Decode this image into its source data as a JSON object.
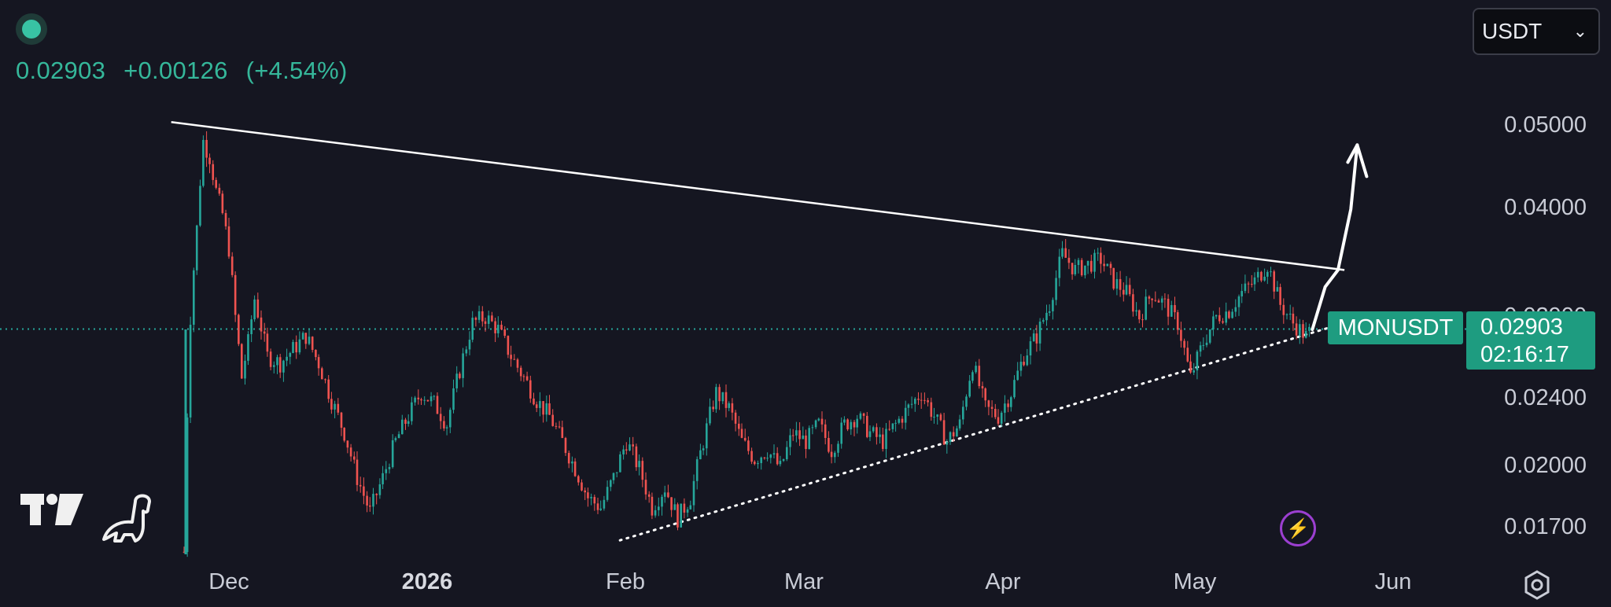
{
  "header": {
    "status_icon": "live-status-dot",
    "price": "0.02903",
    "change": "+0.00126",
    "change_pct": "(+4.54%)"
  },
  "currency_select": {
    "value": "USDT",
    "chevron": "⌄"
  },
  "badges": {
    "ticker": "MONUSDT",
    "last_price": "0.02903",
    "countdown": "02:16:17"
  },
  "icons": {
    "tradingview_logo": "tradingview-logo",
    "dino": "dinosaur-icon",
    "bolt": "⚡",
    "settings": "gear-icon"
  },
  "colors": {
    "background": "#151621",
    "up": "#26a69a",
    "down": "#ef5350",
    "accent": "#1e9c80",
    "trendline": "#ffffff",
    "price_line": "#26a69a"
  },
  "chart_data": {
    "type": "candlestick",
    "symbol": "MONUSDT",
    "y_scale": "log",
    "last_price": 0.02903,
    "x_labels": [
      {
        "label": "Dec",
        "date": "2025-12-01",
        "bold": false
      },
      {
        "label": "2026",
        "date": "2026-01-01",
        "bold": true
      },
      {
        "label": "Feb",
        "date": "2026-02-01",
        "bold": false
      },
      {
        "label": "Mar",
        "date": "2026-03-01",
        "bold": false
      },
      {
        "label": "Apr",
        "date": "2026-04-01",
        "bold": false
      },
      {
        "label": "May",
        "date": "2026-05-01",
        "bold": false
      },
      {
        "label": "Jun",
        "date": "2026-06-01",
        "bold": false
      }
    ],
    "y_ticks": [
      "0.05000",
      "0.04000",
      "0.02900",
      "0.02400",
      "0.02000",
      "0.01700"
    ],
    "price_series": [
      [
        "2025-11-24",
        0.016
      ],
      [
        "2025-11-25",
        0.03
      ],
      [
        "2025-11-26",
        0.038
      ],
      [
        "2025-11-27",
        0.048
      ],
      [
        "2025-11-28",
        0.046
      ],
      [
        "2025-11-29",
        0.042
      ],
      [
        "2025-11-30",
        0.0395
      ],
      [
        "2025-12-01",
        0.036
      ],
      [
        "2025-12-02",
        0.03
      ],
      [
        "2025-12-03",
        0.0255
      ],
      [
        "2025-12-04",
        0.028
      ],
      [
        "2025-12-05",
        0.0315
      ],
      [
        "2025-12-07",
        0.027
      ],
      [
        "2025-12-09",
        0.0265
      ],
      [
        "2025-12-11",
        0.0275
      ],
      [
        "2025-12-13",
        0.0285
      ],
      [
        "2025-12-15",
        0.0265
      ],
      [
        "2025-12-17",
        0.024
      ],
      [
        "2025-12-19",
        0.022
      ],
      [
        "2025-12-21",
        0.0195
      ],
      [
        "2025-12-23",
        0.0178
      ],
      [
        "2025-12-25",
        0.0195
      ],
      [
        "2025-12-27",
        0.0215
      ],
      [
        "2025-12-29",
        0.023
      ],
      [
        "2025-12-31",
        0.0245
      ],
      [
        "2026-01-02",
        0.0238
      ],
      [
        "2026-01-04",
        0.0225
      ],
      [
        "2026-01-06",
        0.026
      ],
      [
        "2026-01-08",
        0.0295
      ],
      [
        "2026-01-10",
        0.03
      ],
      [
        "2026-01-12",
        0.029
      ],
      [
        "2026-01-14",
        0.027
      ],
      [
        "2026-01-16",
        0.0255
      ],
      [
        "2026-01-18",
        0.024
      ],
      [
        "2026-01-20",
        0.023
      ],
      [
        "2026-01-22",
        0.0215
      ],
      [
        "2026-01-24",
        0.02
      ],
      [
        "2026-01-26",
        0.0185
      ],
      [
        "2026-01-28",
        0.018
      ],
      [
        "2026-01-30",
        0.0195
      ],
      [
        "2026-02-01",
        0.0215
      ],
      [
        "2026-02-03",
        0.02
      ],
      [
        "2026-02-05",
        0.018
      ],
      [
        "2026-02-07",
        0.019
      ],
      [
        "2026-02-09",
        0.0175
      ],
      [
        "2026-02-11",
        0.0185
      ],
      [
        "2026-02-13",
        0.0215
      ],
      [
        "2026-02-15",
        0.0245
      ],
      [
        "2026-02-17",
        0.0235
      ],
      [
        "2026-02-19",
        0.0215
      ],
      [
        "2026-02-21",
        0.0205
      ],
      [
        "2026-02-23",
        0.021
      ],
      [
        "2026-02-25",
        0.02
      ],
      [
        "2026-02-27",
        0.022
      ],
      [
        "2026-03-01",
        0.0215
      ],
      [
        "2026-03-03",
        0.0225
      ],
      [
        "2026-03-05",
        0.021
      ],
      [
        "2026-03-07",
        0.0225
      ],
      [
        "2026-03-09",
        0.023
      ],
      [
        "2026-03-11",
        0.022
      ],
      [
        "2026-03-13",
        0.0215
      ],
      [
        "2026-03-15",
        0.0225
      ],
      [
        "2026-03-17",
        0.0235
      ],
      [
        "2026-03-19",
        0.0245
      ],
      [
        "2026-03-21",
        0.023
      ],
      [
        "2026-03-23",
        0.0215
      ],
      [
        "2026-03-25",
        0.0225
      ],
      [
        "2026-03-27",
        0.0265
      ],
      [
        "2026-03-29",
        0.0235
      ],
      [
        "2026-03-31",
        0.023
      ],
      [
        "2026-04-02",
        0.0245
      ],
      [
        "2026-04-04",
        0.027
      ],
      [
        "2026-04-06",
        0.0285
      ],
      [
        "2026-04-08",
        0.031
      ],
      [
        "2026-04-10",
        0.0355
      ],
      [
        "2026-04-12",
        0.034
      ],
      [
        "2026-04-14",
        0.0345
      ],
      [
        "2026-04-16",
        0.035
      ],
      [
        "2026-04-18",
        0.033
      ],
      [
        "2026-04-20",
        0.032
      ],
      [
        "2026-04-22",
        0.03
      ],
      [
        "2026-04-24",
        0.032
      ],
      [
        "2026-04-26",
        0.031
      ],
      [
        "2026-04-28",
        0.0295
      ],
      [
        "2026-04-30",
        0.0255
      ],
      [
        "2026-05-02",
        0.028
      ],
      [
        "2026-05-04",
        0.03
      ],
      [
        "2026-05-06",
        0.0305
      ],
      [
        "2026-05-08",
        0.032
      ],
      [
        "2026-05-10",
        0.033
      ],
      [
        "2026-05-12",
        0.0345
      ],
      [
        "2026-05-14",
        0.031
      ],
      [
        "2026-05-16",
        0.0295
      ],
      [
        "2026-05-18",
        0.0285
      ],
      [
        "2026-05-19",
        0.029
      ]
    ],
    "trendlines": [
      {
        "style": "solid",
        "from": [
          "2025-11-22",
          0.0505
        ],
        "to": [
          "2026-05-24",
          0.034
        ]
      },
      {
        "style": "dotted",
        "from": [
          "2026-01-31",
          0.0165
        ],
        "to": [
          "2026-05-24",
          0.0295
        ]
      }
    ],
    "projection_arrow": [
      [
        "2026-05-19",
        0.029
      ],
      [
        "2026-05-21",
        0.0325
      ],
      [
        "2026-05-23",
        0.034
      ],
      [
        "2026-05-25",
        0.04
      ],
      [
        "2026-05-26",
        0.0475
      ]
    ]
  }
}
